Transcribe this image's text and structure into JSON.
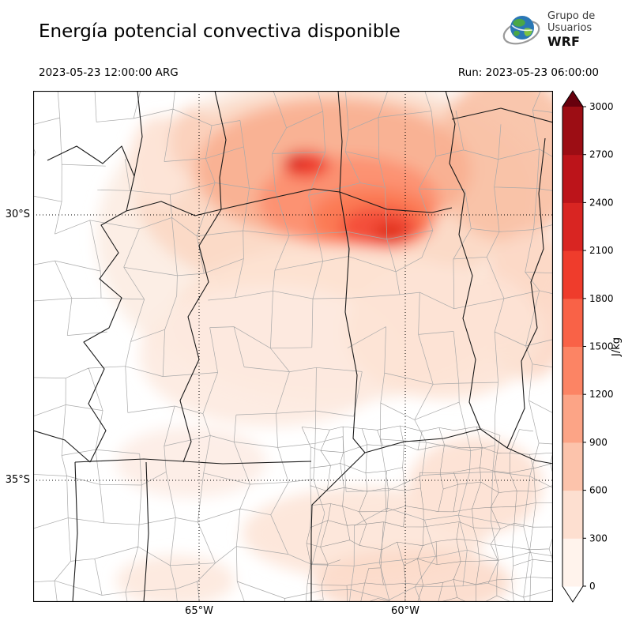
{
  "header": {
    "title": "Energía potencial convectiva disponible",
    "logo": {
      "line1": "Grupo de",
      "line2": "Usuarios",
      "line3": "WRF"
    }
  },
  "subheader": {
    "valid_time": "2023-05-23 12:00:00 ARG",
    "run_label": "Run: 2023-05-23 06:00:00"
  },
  "map": {
    "lat_ticks": [
      {
        "label": "30°S"
      },
      {
        "label": "35°S"
      }
    ],
    "lon_ticks": [
      {
        "label": "65°W"
      },
      {
        "label": "60°W"
      }
    ]
  },
  "colorbar": {
    "unit": "J/kg",
    "levels": [
      0,
      300,
      600,
      900,
      1200,
      1500,
      1800,
      2100,
      2400,
      2700,
      3000
    ],
    "colors": [
      "#fff3ec",
      "#fddfd0",
      "#fcc3ab",
      "#fca486",
      "#fc8464",
      "#f96247",
      "#ef3c2c",
      "#d92522",
      "#bc141a",
      "#9c0d14"
    ],
    "over_color": "#67000d",
    "under_color": "#ffffff"
  },
  "chart_data": {
    "type": "heatmap",
    "title": "Energía potencial convectiva disponible",
    "unit": "J/kg",
    "valid_time": "2023-05-23 12:00:00 ARG",
    "run": "Run: 2023-05-23 06:00:00",
    "levels": [
      0,
      300,
      600,
      900,
      1200,
      1500,
      1800,
      2100,
      2400,
      2700,
      3000
    ],
    "colormap": "Reds",
    "lat_gridlines": [
      "30°S",
      "35°S"
    ],
    "lon_gridlines": [
      "65°W",
      "60°W"
    ],
    "legend_position": "right",
    "notes": "Filled CAPE contours over central-northern Argentina; maximum values (~1500-1800 J/kg) near 30°S between 63°W and 61°W, field fading toward south and west"
  }
}
